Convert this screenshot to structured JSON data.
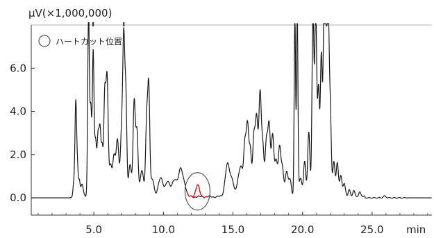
{
  "chart_data": {
    "type": "line",
    "ylabel": "µV(×1,000,000)",
    "x_unit": "min",
    "xlim": [
      0.5,
      29.3
    ],
    "ylim": [
      -0.8,
      8.0
    ],
    "x_ticks": [
      {
        "value": 5.0,
        "label": "5.0"
      },
      {
        "value": 10.0,
        "label": "10.0"
      },
      {
        "value": 15.0,
        "label": "15.0"
      },
      {
        "value": 20.0,
        "label": "20.0"
      },
      {
        "value": 25.0,
        "label": "25.0"
      }
    ],
    "y_ticks": [
      {
        "value": 0.0,
        "label": "0.0"
      },
      {
        "value": 2.0,
        "label": "2.0"
      },
      {
        "value": 4.0,
        "label": "4.0"
      },
      {
        "value": 6.0,
        "label": "6.0"
      }
    ],
    "legend": {
      "label": "ハートカット位置",
      "marker": "circle",
      "placement": "top-left"
    },
    "colors": {
      "trace": "#1a1a1a",
      "highlight": "#e02020",
      "circle": "#555555"
    },
    "baseline": 0.0,
    "peaks": [
      {
        "t": 3.55,
        "h": 0.55,
        "w": 0.05
      },
      {
        "t": 3.7,
        "h": 4.4,
        "w": 0.06
      },
      {
        "t": 3.82,
        "h": 1.2,
        "w": 0.05
      },
      {
        "t": 3.95,
        "h": 0.8,
        "w": 0.06
      },
      {
        "t": 4.15,
        "h": 0.6,
        "w": 0.08
      },
      {
        "t": 4.62,
        "h": 8.5,
        "w": 0.06
      },
      {
        "t": 4.78,
        "h": 4.0,
        "w": 0.06
      },
      {
        "t": 4.95,
        "h": 6.6,
        "w": 0.06
      },
      {
        "t": 5.12,
        "h": 2.5,
        "w": 0.07
      },
      {
        "t": 5.3,
        "h": 2.7,
        "w": 0.07
      },
      {
        "t": 5.45,
        "h": 3.0,
        "w": 0.07
      },
      {
        "t": 5.6,
        "h": 2.0,
        "w": 0.06
      },
      {
        "t": 5.78,
        "h": 4.5,
        "w": 0.07
      },
      {
        "t": 5.95,
        "h": 5.5,
        "w": 0.08
      },
      {
        "t": 6.2,
        "h": 1.4,
        "w": 0.09
      },
      {
        "t": 6.45,
        "h": 1.8,
        "w": 0.1
      },
      {
        "t": 6.7,
        "h": 2.6,
        "w": 0.1
      },
      {
        "t": 7.0,
        "h": 3.0,
        "w": 0.09
      },
      {
        "t": 7.15,
        "h": 6.6,
        "w": 0.07
      },
      {
        "t": 7.3,
        "h": 4.6,
        "w": 0.07
      },
      {
        "t": 7.6,
        "h": 1.5,
        "w": 0.1
      },
      {
        "t": 7.9,
        "h": 4.4,
        "w": 0.08
      },
      {
        "t": 8.1,
        "h": 3.0,
        "w": 0.08
      },
      {
        "t": 8.45,
        "h": 1.2,
        "w": 0.12
      },
      {
        "t": 8.8,
        "h": 3.6,
        "w": 0.08
      },
      {
        "t": 8.95,
        "h": 4.7,
        "w": 0.07
      },
      {
        "t": 9.2,
        "h": 0.8,
        "w": 0.12
      },
      {
        "t": 9.8,
        "h": 0.85,
        "w": 0.18
      },
      {
        "t": 10.3,
        "h": 0.7,
        "w": 0.15
      },
      {
        "t": 10.8,
        "h": 0.8,
        "w": 0.18
      },
      {
        "t": 11.25,
        "h": 1.25,
        "w": 0.16
      },
      {
        "t": 11.55,
        "h": 0.4,
        "w": 0.12
      },
      {
        "t": 12.45,
        "h": 0.55,
        "w": 0.13,
        "highlight": true
      },
      {
        "t": 14.6,
        "h": 1.5,
        "w": 0.16
      },
      {
        "t": 14.95,
        "h": 0.7,
        "w": 0.14
      },
      {
        "t": 15.4,
        "h": 0.8,
        "w": 0.12
      },
      {
        "t": 15.6,
        "h": 1.2,
        "w": 0.1
      },
      {
        "t": 15.85,
        "h": 2.4,
        "w": 0.09
      },
      {
        "t": 16.05,
        "h": 3.2,
        "w": 0.09
      },
      {
        "t": 16.25,
        "h": 2.0,
        "w": 0.08
      },
      {
        "t": 16.5,
        "h": 2.7,
        "w": 0.09
      },
      {
        "t": 16.7,
        "h": 3.5,
        "w": 0.09
      },
      {
        "t": 16.95,
        "h": 4.8,
        "w": 0.09
      },
      {
        "t": 17.15,
        "h": 2.2,
        "w": 0.08
      },
      {
        "t": 17.4,
        "h": 2.5,
        "w": 0.09
      },
      {
        "t": 17.6,
        "h": 3.2,
        "w": 0.09
      },
      {
        "t": 17.85,
        "h": 2.8,
        "w": 0.09
      },
      {
        "t": 18.1,
        "h": 1.6,
        "w": 0.1
      },
      {
        "t": 18.35,
        "h": 2.2,
        "w": 0.09
      },
      {
        "t": 18.55,
        "h": 1.3,
        "w": 0.09
      },
      {
        "t": 18.85,
        "h": 1.1,
        "w": 0.1
      },
      {
        "t": 19.1,
        "h": 0.8,
        "w": 0.1
      },
      {
        "t": 19.45,
        "h": 8.5,
        "w": 0.05
      },
      {
        "t": 19.62,
        "h": 8.5,
        "w": 0.05
      },
      {
        "t": 19.85,
        "h": 0.9,
        "w": 0.1
      },
      {
        "t": 20.15,
        "h": 1.6,
        "w": 0.08
      },
      {
        "t": 20.45,
        "h": 3.0,
        "w": 0.08
      },
      {
        "t": 20.75,
        "h": 8.5,
        "w": 0.07
      },
      {
        "t": 20.95,
        "h": 8.5,
        "w": 0.07
      },
      {
        "t": 21.15,
        "h": 5.0,
        "w": 0.07
      },
      {
        "t": 21.35,
        "h": 6.5,
        "w": 0.07
      },
      {
        "t": 21.55,
        "h": 8.5,
        "w": 0.07
      },
      {
        "t": 21.7,
        "h": 6.3,
        "w": 0.07
      },
      {
        "t": 21.85,
        "h": 8.0,
        "w": 0.07
      },
      {
        "t": 22.0,
        "h": 3.7,
        "w": 0.07
      },
      {
        "t": 22.25,
        "h": 1.6,
        "w": 0.08
      },
      {
        "t": 22.5,
        "h": 1.6,
        "w": 0.08
      },
      {
        "t": 22.75,
        "h": 1.0,
        "w": 0.08
      },
      {
        "t": 23.0,
        "h": 0.6,
        "w": 0.08
      },
      {
        "t": 23.35,
        "h": 0.35,
        "w": 0.08
      },
      {
        "t": 23.7,
        "h": 0.25,
        "w": 0.08
      },
      {
        "t": 24.1,
        "h": 0.25,
        "w": 0.07
      },
      {
        "t": 25.9,
        "h": 0.08,
        "w": 0.1
      }
    ],
    "highlight_window": [
      11.7,
      13.2
    ],
    "highlight_circle_center": {
      "t": 12.45,
      "v": 0.3
    }
  }
}
